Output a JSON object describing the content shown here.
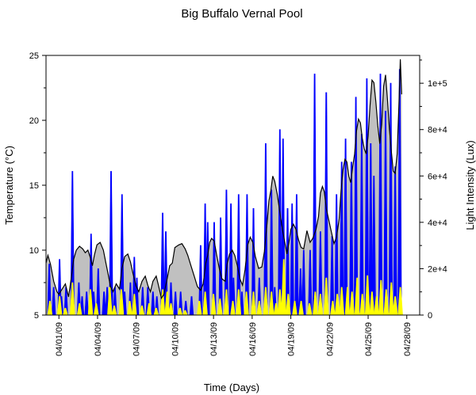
{
  "chart_data": {
    "type": "area",
    "title": "Big Buffalo Vernal Pool",
    "xlabel": "Time (Days)",
    "ylabel": "Temperature (°C)",
    "y2label": "Light Intensity (Lux)",
    "ylim": [
      5,
      25
    ],
    "y2lim": [
      0,
      112000
    ],
    "xlim": [
      "03/31/09",
      "04/29/09"
    ],
    "yticks": [
      "5",
      "10",
      "15",
      "20",
      "25"
    ],
    "y2ticks": [
      "0",
      "2e+4",
      "4e+4",
      "6e+4",
      "8e+4",
      "1e+5"
    ],
    "xticks": [
      "04/01/09",
      "04/04/09",
      "04/07/09",
      "04/10/09",
      "04/13/09",
      "04/16/09",
      "04/19/09",
      "04/22/09",
      "04/25/09",
      "04/28/09"
    ],
    "grid": false,
    "legend": "none",
    "colors": {
      "temperature_line": "#000000",
      "temperature_fill": "#c0c0c0",
      "light_series": "#0000ff",
      "secondary_series": "#ffff00"
    },
    "series": [
      {
        "axis": "left",
        "points": [
          [
            0.0,
            9.0
          ],
          [
            0.15,
            9.6
          ],
          [
            0.35,
            8.9
          ],
          [
            0.6,
            7.6
          ],
          [
            0.85,
            6.8
          ],
          [
            1.0,
            6.6
          ],
          [
            1.25,
            7.0
          ],
          [
            1.5,
            7.4
          ],
          [
            1.75,
            6.4
          ],
          [
            1.95,
            7.8
          ],
          [
            2.15,
            9.3
          ],
          [
            2.35,
            10.0
          ],
          [
            2.6,
            10.3
          ],
          [
            2.85,
            10.1
          ],
          [
            3.05,
            9.8
          ],
          [
            3.25,
            10.0
          ],
          [
            3.45,
            9.4
          ],
          [
            3.6,
            8.8
          ],
          [
            3.75,
            9.6
          ],
          [
            3.95,
            10.4
          ],
          [
            4.2,
            10.6
          ],
          [
            4.45,
            10.0
          ],
          [
            4.65,
            9.0
          ],
          [
            4.85,
            8.0
          ],
          [
            5.0,
            7.2
          ],
          [
            5.2,
            6.8
          ],
          [
            5.45,
            7.4
          ],
          [
            5.7,
            7.0
          ],
          [
            5.9,
            8.6
          ],
          [
            6.1,
            9.5
          ],
          [
            6.35,
            9.7
          ],
          [
            6.55,
            9.1
          ],
          [
            6.75,
            8.2
          ],
          [
            7.0,
            7.2
          ],
          [
            7.2,
            6.8
          ],
          [
            7.45,
            7.6
          ],
          [
            7.7,
            8.0
          ],
          [
            7.9,
            7.3
          ],
          [
            8.1,
            6.8
          ],
          [
            8.3,
            7.6
          ],
          [
            8.55,
            8.0
          ],
          [
            8.75,
            7.2
          ],
          [
            8.95,
            6.3
          ],
          [
            9.15,
            6.6
          ],
          [
            9.4,
            7.8
          ],
          [
            9.6,
            8.8
          ],
          [
            9.8,
            9.0
          ],
          [
            10.0,
            10.2
          ],
          [
            10.3,
            10.4
          ],
          [
            10.55,
            10.5
          ],
          [
            10.8,
            10.1
          ],
          [
            11.0,
            9.6
          ],
          [
            11.25,
            8.8
          ],
          [
            11.5,
            8.0
          ],
          [
            11.75,
            7.2
          ],
          [
            12.0,
            6.9
          ],
          [
            12.2,
            7.4
          ],
          [
            12.4,
            9.0
          ],
          [
            12.55,
            9.6
          ],
          [
            12.7,
            10.6
          ],
          [
            12.85,
            10.9
          ],
          [
            13.05,
            10.7
          ],
          [
            13.25,
            9.6
          ],
          [
            13.45,
            8.6
          ],
          [
            13.65,
            7.8
          ],
          [
            13.9,
            7.6
          ],
          [
            14.05,
            8.9
          ],
          [
            14.25,
            9.7
          ],
          [
            14.45,
            10.0
          ],
          [
            14.65,
            9.6
          ],
          [
            14.85,
            8.8
          ],
          [
            15.05,
            7.8
          ],
          [
            15.25,
            7.3
          ],
          [
            15.45,
            8.5
          ],
          [
            15.65,
            10.4
          ],
          [
            15.85,
            11.0
          ],
          [
            16.05,
            10.6
          ],
          [
            16.25,
            9.5
          ],
          [
            16.5,
            8.6
          ],
          [
            16.75,
            8.7
          ],
          [
            16.95,
            9.9
          ],
          [
            17.15,
            12.0
          ],
          [
            17.3,
            13.8
          ],
          [
            17.45,
            14.6
          ],
          [
            17.6,
            15.7
          ],
          [
            17.75,
            15.3
          ],
          [
            17.95,
            14.3
          ],
          [
            18.15,
            12.9
          ],
          [
            18.35,
            11.6
          ],
          [
            18.55,
            10.5
          ],
          [
            18.7,
            9.7
          ],
          [
            18.85,
            10.6
          ],
          [
            19.0,
            11.6
          ],
          [
            19.2,
            12.0
          ],
          [
            19.4,
            11.6
          ],
          [
            19.6,
            10.8
          ],
          [
            19.8,
            10.2
          ],
          [
            20.0,
            10.1
          ],
          [
            20.25,
            11.5
          ],
          [
            20.5,
            10.6
          ],
          [
            20.7,
            10.9
          ],
          [
            20.95,
            11.6
          ],
          [
            21.15,
            12.6
          ],
          [
            21.3,
            14.4
          ],
          [
            21.45,
            14.9
          ],
          [
            21.6,
            14.5
          ],
          [
            21.75,
            13.2
          ],
          [
            21.95,
            12.3
          ],
          [
            22.15,
            11.4
          ],
          [
            22.35,
            10.5
          ],
          [
            22.55,
            11.0
          ],
          [
            22.75,
            12.4
          ],
          [
            22.9,
            14.6
          ],
          [
            23.05,
            16.2
          ],
          [
            23.2,
            17.0
          ],
          [
            23.35,
            16.8
          ],
          [
            23.5,
            15.7
          ],
          [
            23.65,
            15.2
          ],
          [
            23.8,
            16.4
          ],
          [
            23.95,
            17.4
          ],
          [
            24.1,
            19.2
          ],
          [
            24.25,
            20.1
          ],
          [
            24.4,
            19.8
          ],
          [
            24.55,
            18.6
          ],
          [
            24.7,
            17.8
          ],
          [
            24.85,
            17.4
          ],
          [
            25.0,
            18.8
          ],
          [
            25.15,
            21.2
          ],
          [
            25.3,
            23.1
          ],
          [
            25.45,
            22.9
          ],
          [
            25.6,
            21.4
          ],
          [
            25.75,
            19.6
          ],
          [
            25.9,
            18.2
          ],
          [
            26.05,
            19.7
          ],
          [
            26.2,
            22.6
          ],
          [
            26.35,
            23.5
          ],
          [
            26.5,
            21.6
          ],
          [
            26.65,
            19.4
          ],
          [
            26.8,
            17.6
          ],
          [
            26.95,
            16.1
          ],
          [
            27.1,
            15.9
          ],
          [
            27.25,
            17.4
          ],
          [
            27.4,
            21.5
          ],
          [
            27.5,
            24.7
          ],
          [
            27.6,
            22.0
          ]
        ]
      },
      {
        "axis": "right",
        "peaks": [
          [
            0.25,
            22000
          ],
          [
            0.6,
            12000
          ],
          [
            1.05,
            24000
          ],
          [
            1.2,
            8000
          ],
          [
            1.55,
            12000
          ],
          [
            2.05,
            62000
          ],
          [
            2.55,
            14000
          ],
          [
            2.8,
            8000
          ],
          [
            3.15,
            10000
          ],
          [
            3.5,
            35000
          ],
          [
            3.7,
            10000
          ],
          [
            4.05,
            20000
          ],
          [
            4.5,
            10000
          ],
          [
            4.75,
            12000
          ],
          [
            5.05,
            62000
          ],
          [
            5.35,
            12000
          ],
          [
            5.9,
            52000
          ],
          [
            6.1,
            10000
          ],
          [
            6.55,
            14000
          ],
          [
            6.85,
            25000
          ],
          [
            7.05,
            16000
          ],
          [
            7.5,
            12000
          ],
          [
            7.9,
            12000
          ],
          [
            8.3,
            10000
          ],
          [
            8.6,
            8000
          ],
          [
            9.05,
            44000
          ],
          [
            9.3,
            36000
          ],
          [
            9.7,
            14000
          ],
          [
            10.05,
            10000
          ],
          [
            10.45,
            10000
          ],
          [
            10.85,
            6000
          ],
          [
            11.3,
            8000
          ],
          [
            12.0,
            30000
          ],
          [
            12.35,
            48000
          ],
          [
            12.55,
            40000
          ],
          [
            13.05,
            40000
          ],
          [
            13.55,
            42000
          ],
          [
            14.0,
            54000
          ],
          [
            14.35,
            48000
          ],
          [
            14.55,
            16000
          ],
          [
            14.95,
            52000
          ],
          [
            15.2,
            10000
          ],
          [
            15.6,
            52000
          ],
          [
            16.1,
            46000
          ],
          [
            16.55,
            16000
          ],
          [
            17.05,
            74000
          ],
          [
            17.5,
            54000
          ],
          [
            17.75,
            12000
          ],
          [
            18.15,
            80000
          ],
          [
            18.4,
            76000
          ],
          [
            18.75,
            46000
          ],
          [
            19.1,
            48000
          ],
          [
            19.45,
            52000
          ],
          [
            19.75,
            20000
          ],
          [
            20.0,
            28000
          ],
          [
            20.5,
            28000
          ],
          [
            20.85,
            104000
          ],
          [
            21.3,
            36000
          ],
          [
            21.75,
            96000
          ],
          [
            22.2,
            34000
          ],
          [
            22.55,
            52000
          ],
          [
            22.95,
            66000
          ],
          [
            23.25,
            76000
          ],
          [
            23.7,
            66000
          ],
          [
            24.05,
            94000
          ],
          [
            24.5,
            78000
          ],
          [
            24.9,
            102000
          ],
          [
            25.2,
            74000
          ],
          [
            25.45,
            60000
          ],
          [
            25.95,
            104000
          ],
          [
            26.35,
            88000
          ],
          [
            26.75,
            100000
          ],
          [
            27.1,
            64000
          ],
          [
            27.45,
            106000
          ]
        ]
      },
      {
        "axis": "right",
        "peaks": [
          [
            0.3,
            6000
          ],
          [
            1.05,
            8000
          ],
          [
            1.5,
            3000
          ],
          [
            2.05,
            14000
          ],
          [
            2.6,
            5000
          ],
          [
            3.45,
            11000
          ],
          [
            3.9,
            5000
          ],
          [
            4.95,
            12000
          ],
          [
            5.3,
            4000
          ],
          [
            5.85,
            11000
          ],
          [
            6.5,
            6000
          ],
          [
            6.85,
            9000
          ],
          [
            7.45,
            4000
          ],
          [
            8.0,
            5000
          ],
          [
            8.55,
            3000
          ],
          [
            9.05,
            11000
          ],
          [
            9.4,
            10000
          ],
          [
            9.7,
            5000
          ],
          [
            10.4,
            3000
          ],
          [
            10.8,
            2000
          ],
          [
            11.9,
            6000
          ],
          [
            12.35,
            10000
          ],
          [
            13.0,
            9000
          ],
          [
            13.5,
            7000
          ],
          [
            14.0,
            11000
          ],
          [
            14.5,
            6000
          ],
          [
            14.95,
            11000
          ],
          [
            15.55,
            10000
          ],
          [
            16.1,
            10000
          ],
          [
            16.55,
            6000
          ],
          [
            17.05,
            12000
          ],
          [
            17.5,
            10000
          ],
          [
            17.85,
            5000
          ],
          [
            18.15,
            11000
          ],
          [
            18.45,
            24000
          ],
          [
            18.8,
            9000
          ],
          [
            19.3,
            6000
          ],
          [
            19.8,
            6000
          ],
          [
            20.45,
            5000
          ],
          [
            20.9,
            10000
          ],
          [
            21.3,
            9000
          ],
          [
            21.75,
            16000
          ],
          [
            22.25,
            6000
          ],
          [
            22.6,
            9000
          ],
          [
            22.95,
            12000
          ],
          [
            23.4,
            12000
          ],
          [
            23.75,
            10000
          ],
          [
            24.15,
            16000
          ],
          [
            24.55,
            9000
          ],
          [
            24.95,
            17000
          ],
          [
            25.3,
            10000
          ],
          [
            25.65,
            8000
          ],
          [
            26.0,
            15000
          ],
          [
            26.4,
            11000
          ],
          [
            26.8,
            14000
          ],
          [
            27.1,
            8000
          ],
          [
            27.5,
            12000
          ]
        ]
      }
    ]
  }
}
